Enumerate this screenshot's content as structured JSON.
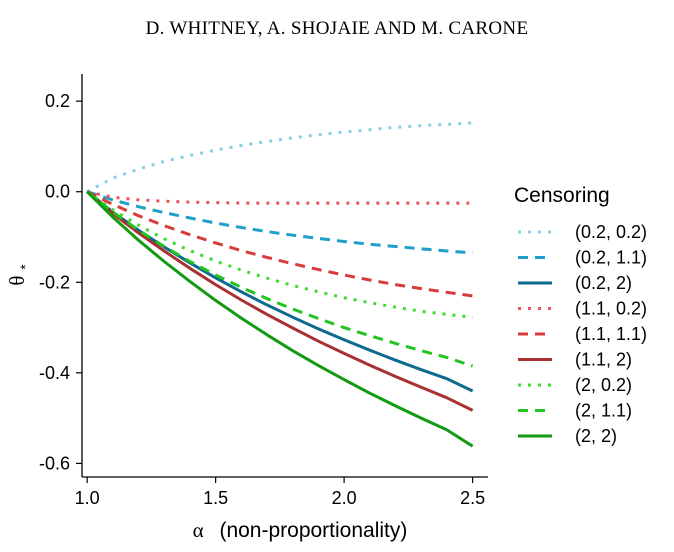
{
  "header": {
    "running_head": "D. WHITNEY, A. SHOJAIE AND M. CARONE"
  },
  "chart_data": {
    "type": "line",
    "title": "",
    "xlabel_symbol": "α",
    "xlabel_text": "(non-proportionality)",
    "ylabel_symbol": "θ",
    "ylabel_subscript": "*",
    "xlim": [
      0.98,
      2.56
    ],
    "ylim": [
      -0.63,
      0.26
    ],
    "xticks": [
      1.0,
      1.5,
      2.0,
      2.5
    ],
    "xtick_labels": [
      "1.0",
      "1.5",
      "2.0",
      "2.5"
    ],
    "yticks": [
      0.2,
      0.0,
      -0.2,
      -0.4,
      -0.6
    ],
    "ytick_labels": [
      "0.2",
      "0.0",
      "-0.2",
      "-0.4",
      "-0.6"
    ],
    "grid": false,
    "legend_title": "Censoring",
    "legend_position": "right",
    "x": [
      1.0,
      1.1,
      1.2,
      1.3,
      1.4,
      1.5,
      1.6,
      1.7,
      1.8,
      1.9,
      2.0,
      2.1,
      2.2,
      2.3,
      2.4,
      2.5
    ],
    "series": [
      {
        "name": "(0.2, 0.2)",
        "color": "#87CEEB",
        "dash": "dotted",
        "values": [
          0.0,
          0.03,
          0.05,
          0.067,
          0.08,
          0.092,
          0.102,
          0.111,
          0.119,
          0.126,
          0.132,
          0.137,
          0.142,
          0.146,
          0.149,
          0.152
        ]
      },
      {
        "name": "(0.2, 1.1)",
        "color": "#1FA0C8",
        "dash": "dashed",
        "values": [
          0.0,
          -0.018,
          -0.033,
          -0.046,
          -0.058,
          -0.069,
          -0.079,
          -0.088,
          -0.096,
          -0.103,
          -0.11,
          -0.116,
          -0.121,
          -0.126,
          -0.131,
          -0.135
        ]
      },
      {
        "name": "(0.2, 2)",
        "color": "#0E6A8E",
        "dash": "solid",
        "values": [
          0.0,
          -0.045,
          -0.085,
          -0.122,
          -0.157,
          -0.19,
          -0.221,
          -0.25,
          -0.277,
          -0.303,
          -0.327,
          -0.35,
          -0.372,
          -0.393,
          -0.413,
          -0.44
        ]
      },
      {
        "name": "(1.1, 0.2)",
        "color": "#F0505A",
        "dash": "dotted",
        "values": [
          0.0,
          -0.012,
          -0.018,
          -0.021,
          -0.023,
          -0.024,
          -0.025,
          -0.025,
          -0.025,
          -0.025,
          -0.025,
          -0.025,
          -0.025,
          -0.025,
          -0.025,
          -0.025
        ]
      },
      {
        "name": "(1.1, 1.1)",
        "color": "#D93A3A",
        "dash": "dashed",
        "values": [
          0.0,
          -0.028,
          -0.053,
          -0.075,
          -0.095,
          -0.113,
          -0.13,
          -0.145,
          -0.159,
          -0.172,
          -0.184,
          -0.195,
          -0.205,
          -0.214,
          -0.222,
          -0.23
        ]
      },
      {
        "name": "(1.1, 2)",
        "color": "#A83232",
        "dash": "solid",
        "values": [
          0.0,
          -0.048,
          -0.091,
          -0.131,
          -0.169,
          -0.205,
          -0.239,
          -0.271,
          -0.301,
          -0.33,
          -0.357,
          -0.383,
          -0.408,
          -0.432,
          -0.455,
          -0.483
        ]
      },
      {
        "name": "(2, 0.2)",
        "color": "#3EDB2E",
        "dash": "dotted",
        "values": [
          0.0,
          -0.04,
          -0.074,
          -0.104,
          -0.13,
          -0.153,
          -0.173,
          -0.191,
          -0.207,
          -0.221,
          -0.234,
          -0.245,
          -0.255,
          -0.264,
          -0.271,
          -0.277
        ]
      },
      {
        "name": "(2, 1.1)",
        "color": "#22C420",
        "dash": "dashed",
        "values": [
          0.0,
          -0.045,
          -0.085,
          -0.121,
          -0.154,
          -0.184,
          -0.211,
          -0.236,
          -0.259,
          -0.28,
          -0.3,
          -0.318,
          -0.335,
          -0.351,
          -0.366,
          -0.385
        ]
      },
      {
        "name": "(2, 2)",
        "color": "#139A13",
        "dash": "solid",
        "values": [
          0.0,
          -0.056,
          -0.107,
          -0.154,
          -0.198,
          -0.24,
          -0.279,
          -0.316,
          -0.351,
          -0.384,
          -0.415,
          -0.445,
          -0.473,
          -0.5,
          -0.526,
          -0.562
        ]
      }
    ]
  }
}
